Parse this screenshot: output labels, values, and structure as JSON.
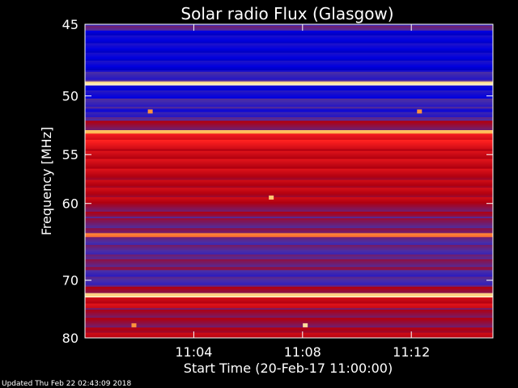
{
  "chart_data": {
    "type": "heatmap",
    "title": "Solar radio Flux (Glasgow)",
    "xlabel": "Start Time (20-Feb-17 11:00:00)",
    "ylabel_prefix": "Frequency ",
    "ylabel_unit": "[MHz]",
    "xlim_minutes": [
      0,
      15
    ],
    "x_ticks": [
      {
        "minute": 4,
        "label": "11:04"
      },
      {
        "minute": 8,
        "label": "11:08"
      },
      {
        "minute": 12,
        "label": "11:12"
      }
    ],
    "ylim_mhz": [
      45,
      80
    ],
    "y_scale": "reciprocal",
    "y_ticks": [
      {
        "mhz": 45,
        "label": "45"
      },
      {
        "mhz": 50,
        "label": "50"
      },
      {
        "mhz": 55,
        "label": "55"
      },
      {
        "mhz": 60,
        "label": "60"
      },
      {
        "mhz": 70,
        "label": "70"
      },
      {
        "mhz": 80,
        "label": "80"
      }
    ],
    "colormap": [
      "#000060",
      "#0000e0",
      "#4b2fa6",
      "#b00010",
      "#ff2020",
      "#ffb040",
      "#fff0c0"
    ],
    "bands": [
      {
        "from_mhz": 45.0,
        "to_mhz": 45.4,
        "intensity": 0.35
      },
      {
        "from_mhz": 45.4,
        "to_mhz": 48.2,
        "intensity": 0.18
      },
      {
        "from_mhz": 48.2,
        "to_mhz": 48.9,
        "intensity": 0.3
      },
      {
        "from_mhz": 48.9,
        "to_mhz": 49.2,
        "intensity": 0.98
      },
      {
        "from_mhz": 49.2,
        "to_mhz": 50.2,
        "intensity": 0.2
      },
      {
        "from_mhz": 50.2,
        "to_mhz": 51.0,
        "intensity": 0.3
      },
      {
        "from_mhz": 51.0,
        "to_mhz": 51.7,
        "intensity": 0.25
      },
      {
        "from_mhz": 51.7,
        "to_mhz": 52.0,
        "intensity": 0.35
      },
      {
        "from_mhz": 52.0,
        "to_mhz": 52.8,
        "intensity": 0.45
      },
      {
        "from_mhz": 52.8,
        "to_mhz": 53.1,
        "intensity": 0.9
      },
      {
        "from_mhz": 53.1,
        "to_mhz": 54.5,
        "intensity": 0.62
      },
      {
        "from_mhz": 54.5,
        "to_mhz": 57.0,
        "intensity": 0.55
      },
      {
        "from_mhz": 57.0,
        "to_mhz": 60.0,
        "intensity": 0.52
      },
      {
        "from_mhz": 60.0,
        "to_mhz": 61.5,
        "intensity": 0.45
      },
      {
        "from_mhz": 61.5,
        "to_mhz": 63.5,
        "intensity": 0.4
      },
      {
        "from_mhz": 63.5,
        "to_mhz": 64.0,
        "intensity": 0.78
      },
      {
        "from_mhz": 64.0,
        "to_mhz": 66.5,
        "intensity": 0.35
      },
      {
        "from_mhz": 66.5,
        "to_mhz": 68.5,
        "intensity": 0.4
      },
      {
        "from_mhz": 68.5,
        "to_mhz": 71.0,
        "intensity": 0.32
      },
      {
        "from_mhz": 71.0,
        "to_mhz": 72.0,
        "intensity": 0.45
      },
      {
        "from_mhz": 72.0,
        "to_mhz": 72.7,
        "intensity": 0.95
      },
      {
        "from_mhz": 72.7,
        "to_mhz": 74.5,
        "intensity": 0.55
      },
      {
        "from_mhz": 74.5,
        "to_mhz": 78.0,
        "intensity": 0.45
      },
      {
        "from_mhz": 78.0,
        "to_mhz": 80.0,
        "intensity": 0.52
      }
    ],
    "spots": [
      {
        "minute": 6.85,
        "mhz": 59.3,
        "intensity": 0.9
      },
      {
        "minute": 8.1,
        "mhz": 77.5,
        "intensity": 0.95
      },
      {
        "minute": 1.8,
        "mhz": 77.5,
        "intensity": 0.8
      },
      {
        "minute": 2.4,
        "mhz": 51.2,
        "intensity": 0.8
      },
      {
        "minute": 12.3,
        "mhz": 51.2,
        "intensity": 0.8
      }
    ]
  },
  "footer": {
    "updated": "Updated Thu Feb 22 02:43:09 2018"
  }
}
